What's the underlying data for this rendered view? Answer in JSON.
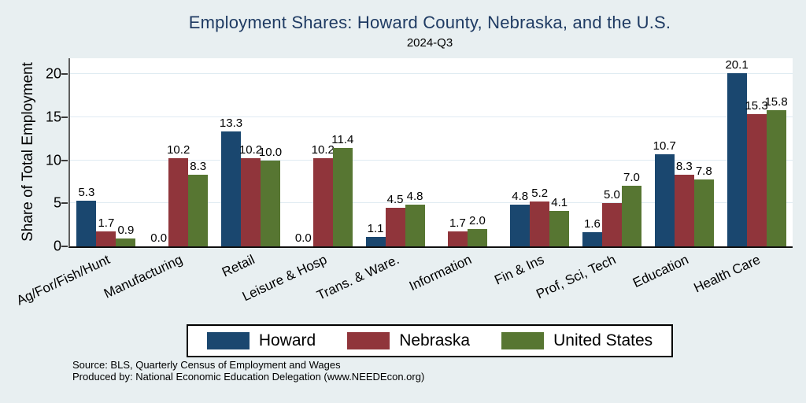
{
  "title": "Employment Shares: Howard County, Nebraska, and the U.S.",
  "subtitle": "2024-Q3",
  "y_axis_title": "Share of Total Employment",
  "footer": {
    "line1": "Source: BLS, Quarterly Census of Employment and Wages",
    "line2": "Produced by: National Economic Education Delegation (www.NEEDEcon.org)"
  },
  "colors": {
    "background": "#e8eff1",
    "plot_background": "#ffffff",
    "gridline": "#dfebf2",
    "title_text": "#1f3b63",
    "howard": "#1a476f",
    "nebraska": "#90353b",
    "united_states": "#577632"
  },
  "chart_data": {
    "type": "bar",
    "title": "Employment Shares: Howard County, Nebraska, and the U.S.",
    "subtitle": "2024-Q3",
    "xlabel": "",
    "ylabel": "Share of Total Employment",
    "ylim": [
      0,
      21.8
    ],
    "yticks": [
      0,
      5,
      10,
      15,
      20
    ],
    "grid": true,
    "legend_position": "bottom",
    "bar_label_format": "one-decimal",
    "categories": [
      "Ag/For/Fish/Hunt",
      "Manufacturing",
      "Retail",
      "Leisure & Hosp",
      "Trans. & Ware.",
      "Information",
      "Fin & Ins",
      "Prof, Sci, Tech",
      "Education",
      "Health Care"
    ],
    "series": [
      {
        "name": "Howard",
        "color": "#1a476f",
        "values": [
          5.3,
          0.0,
          13.3,
          0.0,
          1.1,
          null,
          4.8,
          1.6,
          10.7,
          20.1
        ]
      },
      {
        "name": "Nebraska",
        "color": "#90353b",
        "values": [
          1.7,
          10.2,
          10.2,
          10.2,
          4.5,
          1.7,
          5.2,
          5.0,
          8.3,
          15.3
        ]
      },
      {
        "name": "United States",
        "color": "#577632",
        "values": [
          0.9,
          8.3,
          10.0,
          11.4,
          4.8,
          2.0,
          4.1,
          7.0,
          7.8,
          15.8
        ]
      }
    ]
  }
}
